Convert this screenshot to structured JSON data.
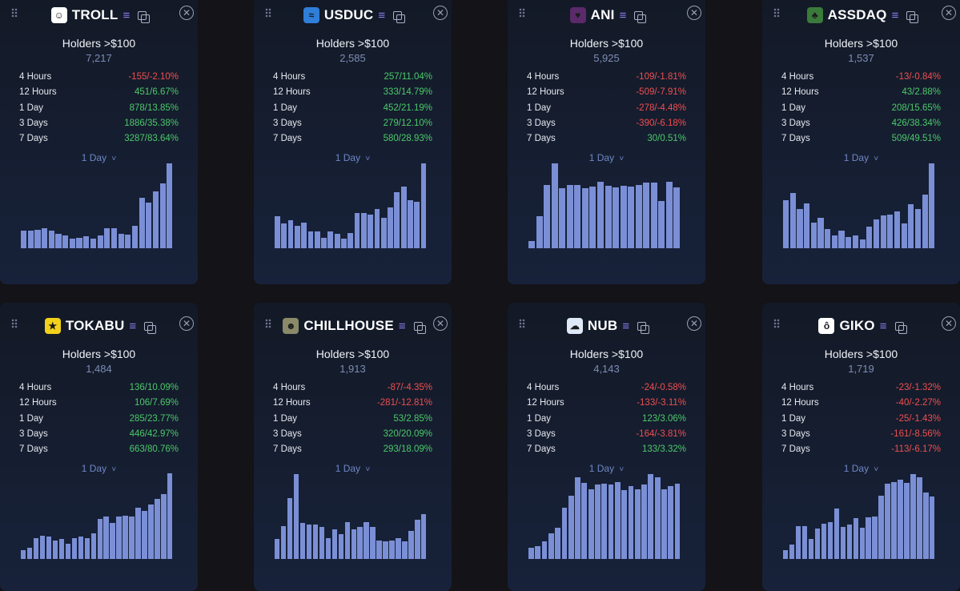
{
  "holders_label": "Holders >$100",
  "period_label": "1 Day",
  "chevron": "˅",
  "close_symbol": "✕",
  "colors": {
    "positive": "#4cc96a",
    "negative": "#ef4f4f",
    "bar": "#7b8fd6",
    "accent": "#8b7df0"
  },
  "row_labels": [
    "4 Hours",
    "12 Hours",
    "1 Day",
    "3 Days",
    "7 Days"
  ],
  "cards": [
    {
      "name": "TROLL",
      "icon": "troll-face-icon",
      "logo_bg": "#ffffff",
      "logo_glyph": "☺",
      "holders": "7,217",
      "changes": [
        [
          "-155/-2.10%",
          "neg"
        ],
        [
          "451/6.67%",
          "pos"
        ],
        [
          "878/13.85%",
          "pos"
        ],
        [
          "1886/35.38%",
          "pos"
        ],
        [
          "3287/83.64%",
          "pos"
        ]
      ],
      "bars": [
        0.2,
        0.2,
        0.21,
        0.23,
        0.2,
        0.17,
        0.15,
        0.11,
        0.12,
        0.14,
        0.11,
        0.15,
        0.23,
        0.23,
        0.17,
        0.16,
        0.26,
        0.58,
        0.53,
        0.66,
        0.75,
        0.98
      ]
    },
    {
      "name": "USDUC",
      "icon": "usduc-chart-icon",
      "logo_bg": "#2f7ed8",
      "logo_glyph": "≈",
      "holders": "2,585",
      "changes": [
        [
          "257/11.04%",
          "pos"
        ],
        [
          "333/14.79%",
          "pos"
        ],
        [
          "452/21.19%",
          "pos"
        ],
        [
          "279/12.10%",
          "pos"
        ],
        [
          "580/28.93%",
          "pos"
        ]
      ],
      "bars": [
        0.37,
        0.29,
        0.32,
        0.26,
        0.3,
        0.19,
        0.19,
        0.12,
        0.19,
        0.17,
        0.11,
        0.18,
        0.41,
        0.41,
        0.39,
        0.45,
        0.35,
        0.47,
        0.65,
        0.71,
        0.56,
        0.54,
        0.98
      ]
    },
    {
      "name": "ANI",
      "icon": "ani-avatar-icon",
      "logo_bg": "#5a2a6a",
      "logo_glyph": "♥",
      "holders": "5,925",
      "changes": [
        [
          "-109/-1.81%",
          "neg"
        ],
        [
          "-509/-7.91%",
          "neg"
        ],
        [
          "-278/-4.48%",
          "neg"
        ],
        [
          "-390/-6.18%",
          "neg"
        ],
        [
          "30/0.51%",
          "pos"
        ]
      ],
      "bars": [
        0.08,
        0.37,
        0.73,
        0.98,
        0.69,
        0.73,
        0.73,
        0.69,
        0.71,
        0.77,
        0.72,
        0.7,
        0.72,
        0.71,
        0.73,
        0.76,
        0.76,
        0.55,
        0.77,
        0.7
      ]
    },
    {
      "name": "ASSDAQ",
      "icon": "assdaq-frog-icon",
      "logo_bg": "#3a7a3a",
      "logo_glyph": "♣",
      "holders": "1,537",
      "changes": [
        [
          "-13/-0.84%",
          "neg"
        ],
        [
          "43/2.88%",
          "pos"
        ],
        [
          "208/15.65%",
          "pos"
        ],
        [
          "426/38.34%",
          "pos"
        ],
        [
          "509/49.51%",
          "pos"
        ]
      ],
      "bars": [
        0.56,
        0.64,
        0.45,
        0.52,
        0.3,
        0.35,
        0.22,
        0.15,
        0.2,
        0.13,
        0.15,
        0.1,
        0.25,
        0.33,
        0.38,
        0.39,
        0.43,
        0.29,
        0.51,
        0.45,
        0.62,
        0.98
      ]
    },
    {
      "name": "TOKABU",
      "icon": "tokabu-star-icon",
      "logo_bg": "#f2d11b",
      "logo_glyph": "★",
      "holders": "1,484",
      "changes": [
        [
          "136/10.09%",
          "pos"
        ],
        [
          "106/7.69%",
          "pos"
        ],
        [
          "285/23.77%",
          "pos"
        ],
        [
          "446/42.97%",
          "pos"
        ],
        [
          "663/80.76%",
          "pos"
        ]
      ],
      "bars": [
        0.1,
        0.13,
        0.24,
        0.27,
        0.26,
        0.21,
        0.23,
        0.18,
        0.24,
        0.26,
        0.24,
        0.3,
        0.46,
        0.49,
        0.42,
        0.49,
        0.5,
        0.49,
        0.59,
        0.56,
        0.63,
        0.69,
        0.75,
        0.99
      ]
    },
    {
      "name": "CHILLHOUSE",
      "icon": "chillhouse-avatar-icon",
      "logo_bg": "#8a8a6a",
      "logo_glyph": "☻",
      "holders": "1,913",
      "changes": [
        [
          "-87/-4.35%",
          "neg"
        ],
        [
          "-281/-12.81%",
          "neg"
        ],
        [
          "53/2.85%",
          "pos"
        ],
        [
          "320/20.09%",
          "pos"
        ],
        [
          "293/18.09%",
          "pos"
        ]
      ],
      "bars": [
        0.23,
        0.38,
        0.7,
        0.98,
        0.42,
        0.4,
        0.4,
        0.37,
        0.24,
        0.34,
        0.29,
        0.43,
        0.34,
        0.37,
        0.43,
        0.37,
        0.21,
        0.2,
        0.21,
        0.24,
        0.2,
        0.32,
        0.45,
        0.52
      ]
    },
    {
      "name": "NUB",
      "icon": "nub-cat-icon",
      "logo_bg": "#dfe9f7",
      "logo_glyph": "☁",
      "holders": "4,143",
      "changes": [
        [
          "-24/-0.58%",
          "neg"
        ],
        [
          "-133/-3.11%",
          "neg"
        ],
        [
          "123/3.06%",
          "pos"
        ],
        [
          "-164/-3.81%",
          "neg"
        ],
        [
          "133/3.32%",
          "pos"
        ]
      ],
      "bars": [
        0.13,
        0.15,
        0.2,
        0.3,
        0.36,
        0.59,
        0.73,
        0.94,
        0.88,
        0.81,
        0.86,
        0.87,
        0.86,
        0.89,
        0.8,
        0.84,
        0.81,
        0.86,
        0.98,
        0.94,
        0.81,
        0.84,
        0.87
      ]
    },
    {
      "name": "GIKO",
      "icon": "giko-cat-icon",
      "logo_bg": "#ffffff",
      "logo_glyph": "ô",
      "holders": "1,719",
      "changes": [
        [
          "-23/-1.32%",
          "neg"
        ],
        [
          "-40/-2.27%",
          "neg"
        ],
        [
          "-25/-1.43%",
          "neg"
        ],
        [
          "-161/-8.56%",
          "neg"
        ],
        [
          "-113/-6.17%",
          "neg"
        ]
      ],
      "bars": [
        0.1,
        0.17,
        0.38,
        0.38,
        0.23,
        0.35,
        0.41,
        0.43,
        0.58,
        0.37,
        0.4,
        0.47,
        0.36,
        0.48,
        0.49,
        0.73,
        0.87,
        0.89,
        0.92,
        0.88,
        0.98,
        0.94,
        0.77,
        0.72
      ]
    }
  ]
}
